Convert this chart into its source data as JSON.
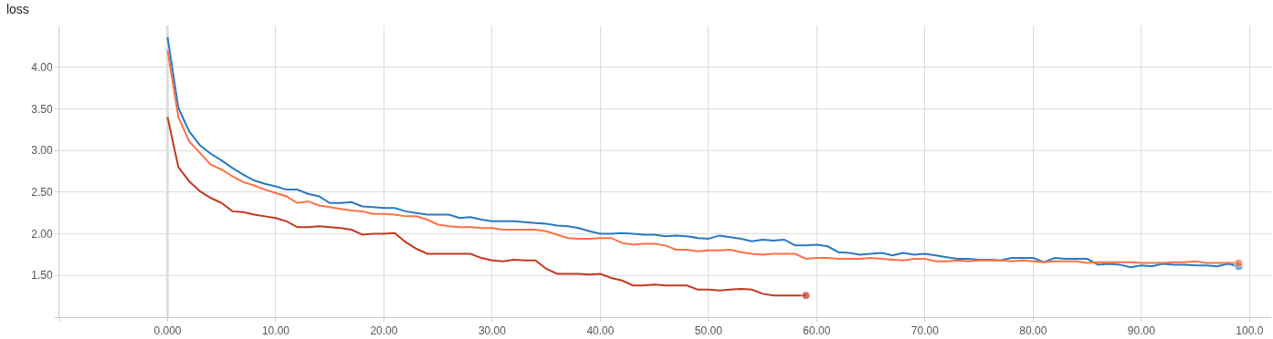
{
  "chart_data": {
    "type": "line",
    "title": "loss",
    "x": [
      0,
      1,
      2,
      3,
      4,
      5,
      6,
      7,
      8,
      9,
      10,
      11,
      12,
      13,
      14,
      15,
      16,
      17,
      18,
      19,
      20,
      21,
      22,
      23,
      24,
      25,
      26,
      27,
      28,
      29,
      30,
      31,
      32,
      33,
      34,
      35,
      36,
      37,
      38,
      39,
      40,
      41,
      42,
      43,
      44,
      45,
      46,
      47,
      48,
      49,
      50,
      51,
      52,
      53,
      54,
      55,
      56,
      57,
      58,
      59,
      60,
      61,
      62,
      63,
      64,
      65,
      66,
      67,
      68,
      69,
      70,
      71,
      72,
      73,
      74,
      75,
      76,
      77,
      78,
      79,
      80,
      81,
      82,
      83,
      84,
      85,
      86,
      87,
      88,
      89,
      90,
      91,
      92,
      93,
      94,
      95,
      96,
      97,
      98,
      99
    ],
    "series": [
      {
        "color": "#2a78c2",
        "values": [
          4.36,
          3.51,
          3.23,
          3.06,
          2.96,
          2.88,
          2.79,
          2.71,
          2.64,
          2.6,
          2.57,
          2.53,
          2.53,
          2.48,
          2.45,
          2.37,
          2.37,
          2.38,
          2.33,
          2.32,
          2.31,
          2.31,
          2.27,
          2.25,
          2.23,
          2.23,
          2.23,
          2.19,
          2.2,
          2.17,
          2.15,
          2.15,
          2.15,
          2.14,
          2.13,
          2.12,
          2.1,
          2.09,
          2.07,
          2.03,
          2.0,
          2.0,
          2.01,
          2.0,
          1.99,
          1.99,
          1.97,
          1.98,
          1.97,
          1.95,
          1.94,
          1.98,
          1.96,
          1.94,
          1.91,
          1.93,
          1.92,
          1.93,
          1.86,
          1.86,
          1.87,
          1.85,
          1.78,
          1.77,
          1.75,
          1.76,
          1.77,
          1.74,
          1.77,
          1.75,
          1.76,
          1.74,
          1.72,
          1.7,
          1.7,
          1.69,
          1.69,
          1.68,
          1.71,
          1.71,
          1.71,
          1.66,
          1.71,
          1.7,
          1.7,
          1.7,
          1.63,
          1.64,
          1.63,
          1.6,
          1.62,
          1.61,
          1.64,
          1.63,
          1.63,
          1.62,
          1.62,
          1.61,
          1.64,
          1.61
        ]
      },
      {
        "color": "#ff7043",
        "values": [
          4.2,
          3.4,
          3.11,
          2.97,
          2.83,
          2.77,
          2.69,
          2.62,
          2.58,
          2.53,
          2.49,
          2.45,
          2.37,
          2.39,
          2.34,
          2.32,
          2.3,
          2.28,
          2.27,
          2.24,
          2.24,
          2.23,
          2.21,
          2.21,
          2.17,
          2.11,
          2.09,
          2.08,
          2.08,
          2.07,
          2.07,
          2.05,
          2.05,
          2.05,
          2.05,
          2.03,
          1.99,
          1.95,
          1.94,
          1.94,
          1.95,
          1.95,
          1.89,
          1.87,
          1.88,
          1.88,
          1.86,
          1.81,
          1.81,
          1.79,
          1.8,
          1.8,
          1.81,
          1.78,
          1.76,
          1.75,
          1.76,
          1.76,
          1.76,
          1.7,
          1.71,
          1.71,
          1.7,
          1.7,
          1.7,
          1.71,
          1.7,
          1.69,
          1.68,
          1.7,
          1.7,
          1.67,
          1.67,
          1.68,
          1.67,
          1.68,
          1.68,
          1.68,
          1.67,
          1.68,
          1.67,
          1.66,
          1.67,
          1.67,
          1.67,
          1.65,
          1.66,
          1.66,
          1.66,
          1.66,
          1.65,
          1.65,
          1.65,
          1.66,
          1.66,
          1.67,
          1.65,
          1.65,
          1.65,
          1.65
        ]
      },
      {
        "color": "#c4381f",
        "x": [
          0,
          1,
          2,
          3,
          4,
          5,
          6,
          7,
          8,
          9,
          10,
          11,
          12,
          13,
          14,
          15,
          16,
          17,
          18,
          19,
          20,
          21,
          22,
          23,
          24,
          25,
          26,
          27,
          28,
          29,
          30,
          31,
          32,
          33,
          34,
          35,
          36,
          37,
          38,
          39,
          40,
          41,
          42,
          43,
          44,
          45,
          46,
          47,
          48,
          49,
          50,
          51,
          52,
          53,
          54,
          55,
          56,
          57,
          58,
          59
        ],
        "values": [
          3.4,
          2.8,
          2.63,
          2.51,
          2.43,
          2.37,
          2.27,
          2.26,
          2.23,
          2.21,
          2.19,
          2.15,
          2.08,
          2.08,
          2.09,
          2.08,
          2.07,
          2.05,
          1.99,
          2.0,
          2.0,
          2.01,
          1.9,
          1.82,
          1.76,
          1.76,
          1.76,
          1.76,
          1.76,
          1.71,
          1.68,
          1.67,
          1.69,
          1.68,
          1.68,
          1.58,
          1.52,
          1.52,
          1.52,
          1.51,
          1.52,
          1.47,
          1.44,
          1.38,
          1.38,
          1.39,
          1.38,
          1.38,
          1.38,
          1.33,
          1.33,
          1.32,
          1.33,
          1.34,
          1.33,
          1.28,
          1.26,
          1.26,
          1.26,
          1.26
        ]
      }
    ],
    "xlim": [
      -10,
      102
    ],
    "xticks": [
      {
        "value": -10,
        "label": null
      },
      {
        "value": 0,
        "label": "0.000"
      },
      {
        "value": 10,
        "label": "10.00"
      },
      {
        "value": 20,
        "label": "20.00"
      },
      {
        "value": 30,
        "label": "30.00"
      },
      {
        "value": 40,
        "label": "40.00"
      },
      {
        "value": 50,
        "label": "50.00"
      },
      {
        "value": 60,
        "label": "60.00"
      },
      {
        "value": 70,
        "label": "70.00"
      },
      {
        "value": 80,
        "label": "80.00"
      },
      {
        "value": 90,
        "label": "90.00"
      },
      {
        "value": 100,
        "label": "100.0"
      }
    ],
    "ylim": [
      1.0,
      4.5
    ],
    "yticks": [
      {
        "value": 1.0,
        "label": null
      },
      {
        "value": 1.5,
        "label": "1.50"
      },
      {
        "value": 2.0,
        "label": "2.00"
      },
      {
        "value": 2.5,
        "label": "2.50"
      },
      {
        "value": 3.0,
        "label": "3.00"
      },
      {
        "value": 3.5,
        "label": "3.50"
      },
      {
        "value": 4.0,
        "label": "4.00"
      }
    ],
    "ref_lines": [
      {
        "axis": "x",
        "value": 0,
        "color": "#888888"
      }
    ],
    "grid": true,
    "marker": "none",
    "line_style": "solid"
  }
}
